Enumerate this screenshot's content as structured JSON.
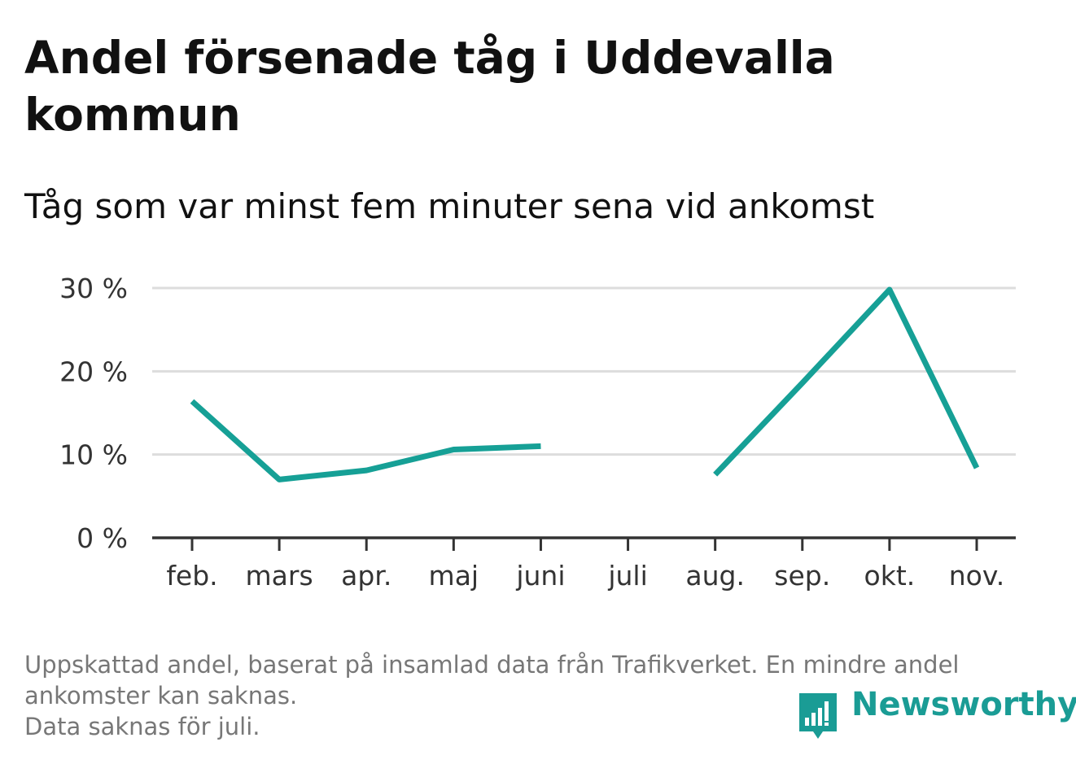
{
  "title": "Andel försenade tåg i Uddevalla kommun",
  "subtitle": "Tåg som var minst fem minuter sena vid ankomst",
  "colors": {
    "line": "#16a096",
    "grid": "#dddddd",
    "axis": "#333333",
    "footnote": "#777777",
    "brand": "#1a9c95"
  },
  "chart_data": {
    "type": "line",
    "categories": [
      "feb.",
      "mars",
      "apr.",
      "maj",
      "juni",
      "juli",
      "aug.",
      "sep.",
      "okt.",
      "nov."
    ],
    "series": [
      {
        "values": [
          16.4,
          7.0,
          8.1,
          10.6,
          11.0,
          null,
          7.6,
          18.6,
          29.8,
          8.4
        ]
      }
    ],
    "y_ticks": [
      0,
      10,
      20,
      30
    ],
    "y_tick_labels": [
      "0 %",
      "10 %",
      "20 %",
      "30 %"
    ],
    "ylim": [
      0,
      30
    ],
    "grid": true,
    "xlabel": "",
    "ylabel": ""
  },
  "footnote": {
    "line1": "Uppskattad andel, baserat på insamlad data från Trafikverket. En mindre andel",
    "line2": "ankomster kan saknas.",
    "line3": "Data saknas för juli."
  },
  "brand": {
    "name": "Newsworthy",
    "logo_icon": "bar-chart-speech-bubble-icon"
  }
}
